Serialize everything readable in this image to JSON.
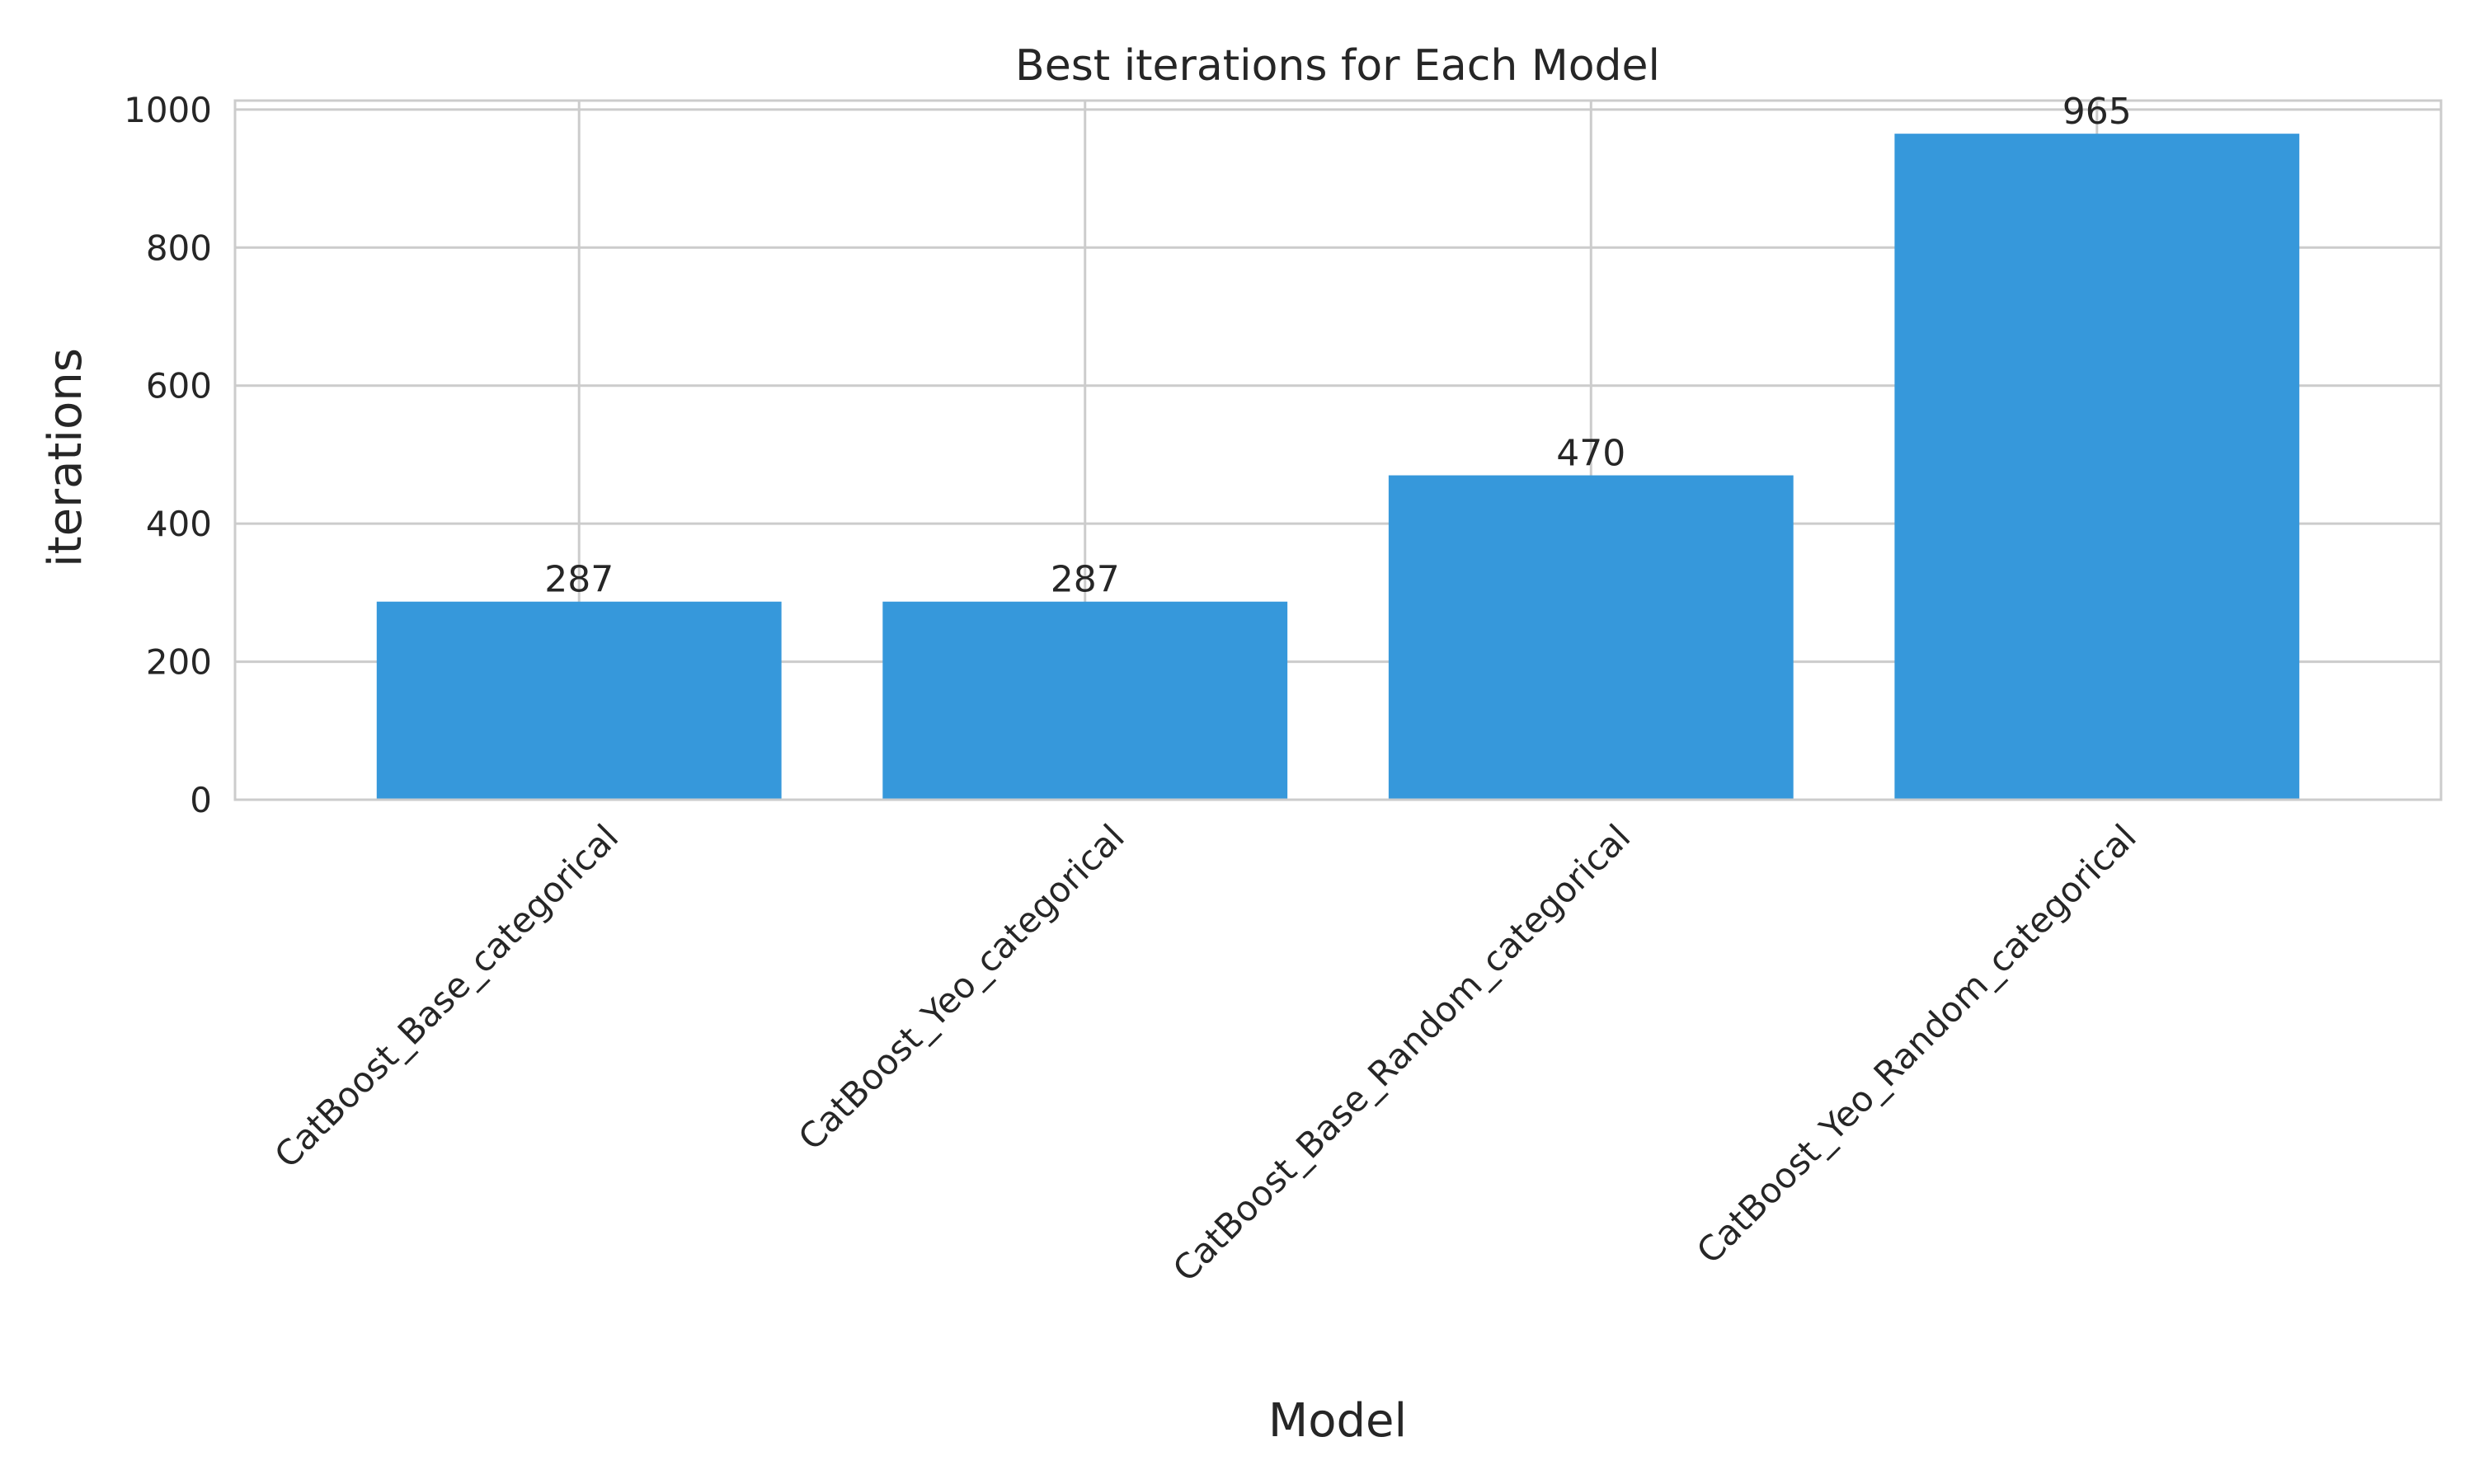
{
  "chart_data": {
    "type": "bar",
    "title": "Best iterations for Each Model",
    "xlabel": "Model",
    "ylabel": "iterations",
    "categories": [
      "CatBoost_Base_categorical",
      "CatBoost_Yeo_categorical",
      "CatBoost_Base_Random_categorical",
      "CatBoost_Yeo_Random_categorical"
    ],
    "values": [
      287,
      287,
      470,
      965
    ],
    "data_labels": [
      "287",
      "287",
      "470",
      "965"
    ],
    "ylim": [
      0,
      1013
    ],
    "yticks": [
      0,
      200,
      400,
      600,
      800,
      1000
    ],
    "ytick_labels": [
      "0",
      "200",
      "400",
      "600",
      "800",
      "1000"
    ],
    "grid": true,
    "bar_color": "#3698db",
    "xtick_rotation_deg": 45
  }
}
